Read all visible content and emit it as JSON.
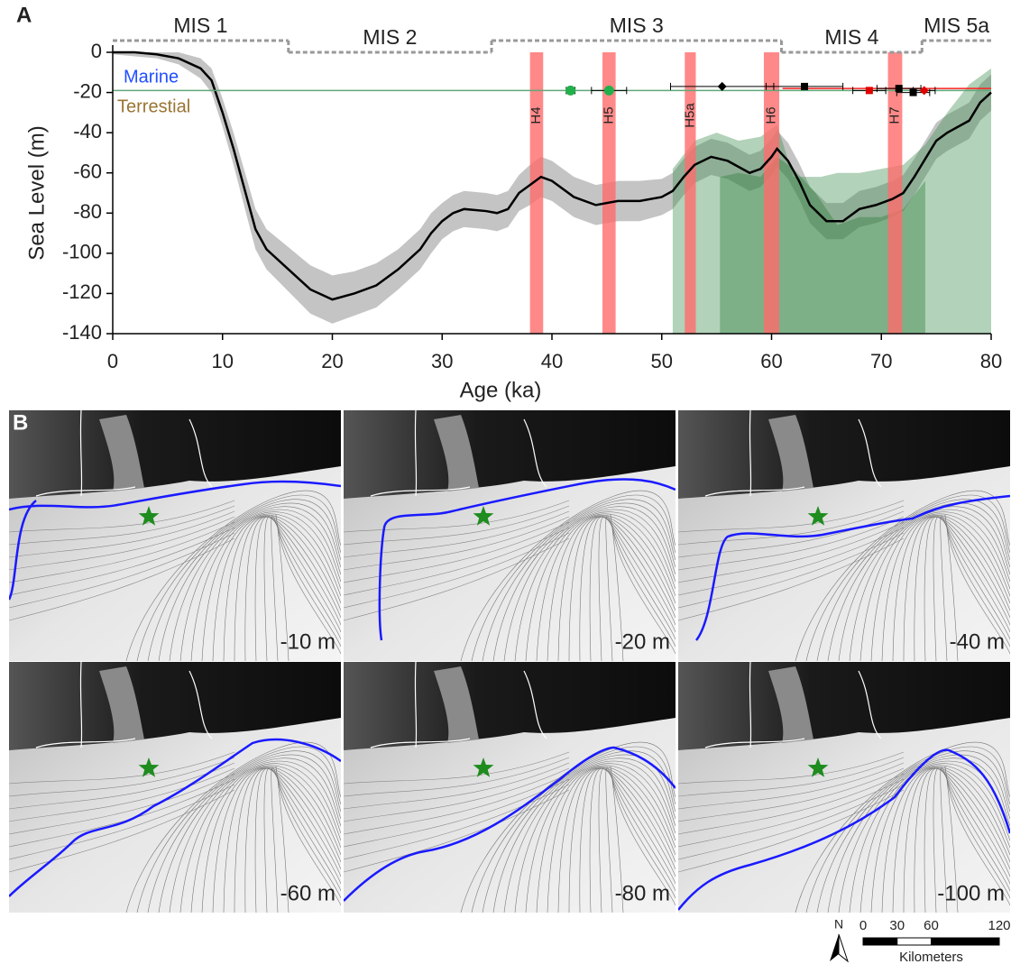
{
  "chart_data": {
    "type": "line",
    "panel_label": "A",
    "x_label": "Age (ka)",
    "y_label": "Sea Level (m)",
    "xlim": [
      0,
      80
    ],
    "ylim": [
      -140,
      0
    ],
    "xticks": [
      0,
      10,
      20,
      30,
      40,
      50,
      60,
      70,
      80
    ],
    "yticks": [
      0,
      -20,
      -40,
      -60,
      -80,
      -100,
      -120,
      -140
    ],
    "color": "#000000",
    "x": [
      0,
      2,
      4,
      6,
      8,
      9,
      10,
      11,
      12,
      13,
      14,
      16,
      18,
      20,
      22,
      24,
      26,
      28,
      29,
      30,
      31,
      32,
      34,
      35,
      36,
      37,
      38,
      39,
      40,
      42,
      44,
      46,
      48,
      50,
      51,
      52,
      53,
      54.5,
      56,
      58,
      59,
      60,
      60.5,
      61.5,
      62.5,
      63.5,
      65,
      66.5,
      68,
      69.5,
      71,
      72,
      73,
      75,
      76,
      78,
      79,
      80
    ],
    "values": [
      0,
      0,
      -1,
      -3,
      -8,
      -14,
      -30,
      -48,
      -68,
      -88,
      -98,
      -108,
      -118,
      -123,
      -120,
      -116,
      -108,
      -98,
      -90,
      -84,
      -80,
      -78,
      -79,
      -80,
      -78,
      -70,
      -66,
      -62,
      -64,
      -72,
      -76,
      -74,
      -74,
      -72,
      -69,
      -62,
      -56,
      -52,
      -54,
      -60,
      -58,
      -52,
      -48,
      -54,
      -64,
      -76,
      -84,
      -84,
      -78,
      -76,
      -73,
      -70,
      -62,
      -44,
      -40,
      -34,
      -25,
      -20
    ],
    "band": {
      "color": "#c4c4c4",
      "upper": [
        0,
        0,
        0,
        0,
        -3,
        -8,
        -23,
        -40,
        -59,
        -78,
        -88,
        -97,
        -106,
        -111,
        -109,
        -105,
        -98,
        -88,
        -80,
        -75,
        -71,
        -69,
        -70,
        -71,
        -69,
        -61,
        -56,
        -52,
        -54,
        -62,
        -66,
        -64,
        -64,
        -63,
        -60,
        -53,
        -47,
        -43,
        -45,
        -51,
        -49,
        -43,
        -39,
        -45,
        -55,
        -67,
        -75,
        -75,
        -69,
        -67,
        -64,
        -61,
        -53,
        -35,
        -31,
        -25,
        -16,
        -11
      ],
      "lower": [
        -1,
        -2,
        -3,
        -6,
        -13,
        -20,
        -37,
        -56,
        -77,
        -98,
        -108,
        -119,
        -130,
        -135,
        -131,
        -127,
        -118,
        -108,
        -100,
        -93,
        -89,
        -87,
        -88,
        -89,
        -87,
        -79,
        -76,
        -72,
        -74,
        -82,
        -86,
        -84,
        -84,
        -81,
        -78,
        -71,
        -65,
        -61,
        -63,
        -69,
        -67,
        -61,
        -57,
        -63,
        -73,
        -85,
        -93,
        -93,
        -87,
        -85,
        -82,
        -79,
        -71,
        -53,
        -49,
        -43,
        -34,
        -29
      ]
    },
    "areas": [
      {
        "color": "#3f8f50",
        "x": [
          51,
          53,
          55,
          57,
          59,
          60.5,
          62,
          64.5,
          66,
          68,
          70,
          72,
          74,
          76,
          78,
          80
        ],
        "values": [
          -58,
          -44,
          -40,
          -44,
          -42,
          -36,
          -62,
          -62,
          -60,
          -60,
          -58,
          -56,
          -46,
          -30,
          -16,
          -8
        ]
      },
      {
        "color": "#2e7d3a",
        "x": [
          55.3,
          57,
          59,
          60.5,
          62,
          64,
          66,
          68,
          70,
          72,
          74
        ],
        "values": [
          -62,
          -60,
          -62,
          -52,
          -58,
          -70,
          -86,
          -82,
          -82,
          -78,
          -64
        ]
      }
    ],
    "events": [
      {
        "label": "H4",
        "start": 38,
        "end": 39.2
      },
      {
        "label": "H5",
        "start": 44.6,
        "end": 45.8
      },
      {
        "label": "H5a",
        "start": 52.1,
        "end": 53.1
      },
      {
        "label": "H6",
        "start": 59.3,
        "end": 60.7
      },
      {
        "label": "H7",
        "start": 70.6,
        "end": 71.9
      }
    ],
    "event_color": "#ff6b6b",
    "stages": [
      {
        "label": "MIS 1",
        "start": 0,
        "end": 16
      },
      {
        "label": "MIS 2",
        "start": 16,
        "end": 34.5
      },
      {
        "label": "MIS 3",
        "start": 34.5,
        "end": 60.9
      },
      {
        "label": "MIS 4",
        "start": 60.9,
        "end": 73.7
      },
      {
        "label": "MIS 5a",
        "start": 73.7,
        "end": 80
      }
    ],
    "legend": [
      {
        "name": "Marine",
        "color": "#1f4fff"
      },
      {
        "name": "Terrestial",
        "color": "#9a7434"
      }
    ],
    "reference_lines": [
      {
        "y": -19,
        "x0": 0,
        "x1": 80,
        "color": "#5fa878"
      },
      {
        "y": -18,
        "x0": 61,
        "x1": 80,
        "color": "#ff2020"
      }
    ],
    "samples": [
      {
        "x": 41.7,
        "y": -19,
        "xerr": 0.4,
        "color": "#22b04b",
        "marker": "circle"
      },
      {
        "x": 45.2,
        "y": -19,
        "xerr": 1.6,
        "color": "#22b04b",
        "marker": "circle"
      },
      {
        "x": 55.5,
        "y": -17,
        "xerr": 4.7,
        "color": "#000000",
        "marker": "diamond"
      },
      {
        "x": 63,
        "y": -17,
        "xerr": 3.5,
        "color": "#000000",
        "marker": "square"
      },
      {
        "x": 68.9,
        "y": -19,
        "xerr": 1.5,
        "color": "#e00000",
        "marker": "square"
      },
      {
        "x": 71.6,
        "y": -18,
        "xerr": 2,
        "color": "#000000",
        "marker": "square"
      },
      {
        "x": 72.9,
        "y": -20,
        "xerr": 1.5,
        "color": "#000000",
        "marker": "square"
      },
      {
        "x": 73.9,
        "y": -19,
        "xerr": 1,
        "color": "#e00000",
        "marker": "diamond"
      }
    ]
  },
  "panel_b": {
    "label": "B",
    "maps": [
      {
        "label": "-10 m"
      },
      {
        "label": "-20 m"
      },
      {
        "label": "-40 m"
      },
      {
        "label": "-60 m"
      },
      {
        "label": "-80 m"
      },
      {
        "label": "-100 m"
      }
    ],
    "scale_bar": {
      "north": "N",
      "ticks": [
        0,
        30,
        60,
        120
      ],
      "unit": "Kilometers"
    }
  }
}
